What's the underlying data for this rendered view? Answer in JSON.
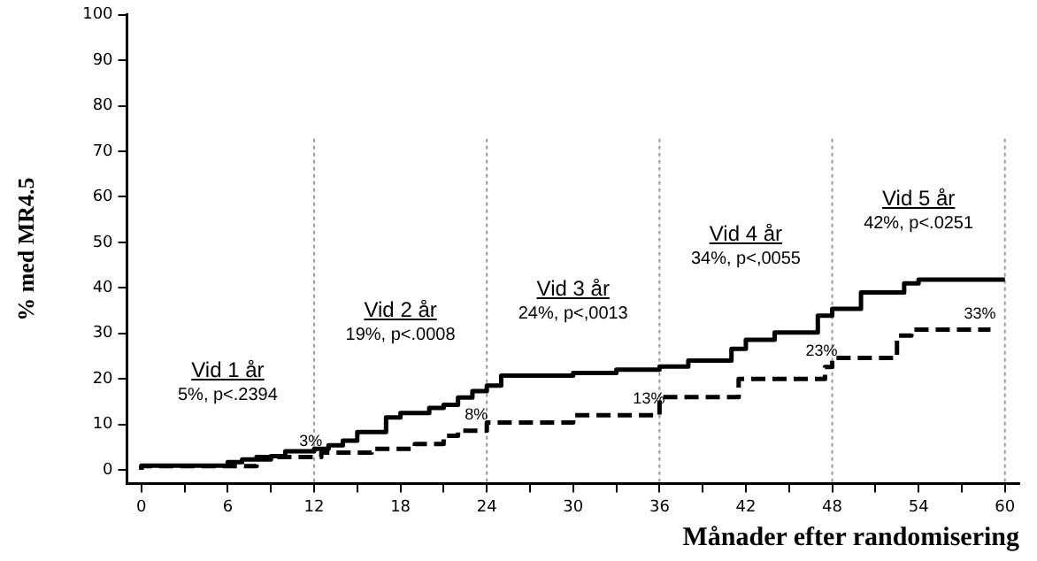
{
  "chart_data": {
    "type": "step",
    "xlabel": "Månader efter randomisering",
    "ylabel": "% med MR4.5",
    "xlim": [
      -1,
      61
    ],
    "ylim": [
      -3,
      100
    ],
    "xticks": [
      0,
      {
        "value": 3,
        "label": null
      },
      6,
      {
        "value": 9,
        "label": null
      },
      12,
      {
        "value": 15,
        "label": null
      },
      18,
      {
        "value": 21,
        "label": null
      },
      24,
      {
        "value": 27,
        "label": null
      },
      30,
      {
        "value": 33,
        "label": null
      },
      36,
      {
        "value": 39,
        "label": null
      },
      42,
      {
        "value": 45,
        "label": null
      },
      48,
      {
        "value": 51,
        "label": null
      },
      54,
      {
        "value": 57,
        "label": null
      },
      60
    ],
    "yticks": [
      0,
      10,
      20,
      30,
      40,
      50,
      60,
      70,
      80,
      90,
      100
    ],
    "grid": false,
    "legend": false,
    "marker": "none",
    "series": [
      {
        "color": "#000000",
        "line_style": "solid",
        "x": [
          0,
          6,
          7,
          9,
          10,
          12,
          13,
          14,
          15,
          17,
          18,
          20,
          21,
          22,
          23,
          24,
          25,
          30,
          33,
          36,
          38,
          41,
          42,
          44,
          47,
          48,
          50,
          53,
          54,
          55,
          60
        ],
        "values": [
          0,
          0.9,
          1.7,
          2.3,
          3.0,
          4.1,
          4.6,
          5.4,
          6.4,
          8.3,
          11.5,
          12.5,
          13.6,
          14.3,
          15.9,
          17.3,
          18.5,
          20.7,
          21.3,
          22,
          22.7,
          24,
          26.6,
          28.6,
          30.2,
          33.9,
          35.4,
          39,
          41,
          41.8,
          41.8
        ]
      },
      {
        "color": "#000000",
        "line_style": "dashed",
        "x": [
          0,
          8,
          12.5,
          16,
          19,
          21,
          22,
          24,
          30,
          36,
          41.5,
          47.5,
          48,
          52.5,
          53.5,
          55,
          59
        ],
        "values": [
          0,
          0.8,
          2.8,
          3.8,
          4.6,
          5.7,
          7.5,
          8.6,
          10.4,
          12,
          16,
          20,
          22.6,
          24.6,
          29.5,
          30.8,
          30.8
        ]
      }
    ],
    "ref_lines": [
      {
        "axis": "x",
        "value": 12,
        "color": "#999999",
        "line_style": "dotted"
      },
      {
        "axis": "x",
        "value": 24,
        "color": "#999999",
        "line_style": "dotted"
      },
      {
        "axis": "x",
        "value": 36,
        "color": "#999999",
        "line_style": "dotted"
      },
      {
        "axis": "x",
        "value": 48,
        "color": "#999999",
        "line_style": "dotted"
      },
      {
        "axis": "x",
        "value": 60,
        "color": "#999999",
        "line_style": "dotted"
      }
    ],
    "annotations": [
      "Vid 1 år",
      "5%, p<.2394",
      "Vid 2 år",
      "19%, p<.0008",
      "Vid 3 år",
      "24%, p<,0013",
      "Vid 4 år",
      "34%, p<,0055",
      "Vid 5 år",
      "42%, p<.0251",
      {
        "text": "3%",
        "x": 12.5,
        "y": 2.8
      },
      {
        "text": "8%",
        "x": 24,
        "y": 8.6
      },
      {
        "text": "13%",
        "x": 36,
        "y": 12
      },
      {
        "text": "23%",
        "x": 48,
        "y": 22.6
      },
      {
        "text": "33%",
        "x": 59,
        "y": 30.8
      }
    ]
  }
}
